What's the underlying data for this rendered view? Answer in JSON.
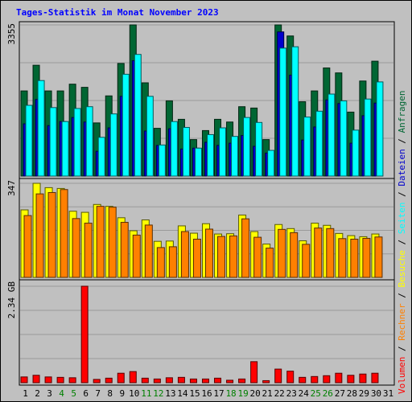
{
  "chart_data": {
    "type": "bar",
    "title": "Tages-Statistik im Monat November 2023",
    "categories": [
      "1",
      "2",
      "3",
      "4",
      "5",
      "6",
      "7",
      "8",
      "9",
      "10",
      "11",
      "12",
      "13",
      "14",
      "15",
      "16",
      "17",
      "18",
      "19",
      "20",
      "21",
      "22",
      "23",
      "24",
      "25",
      "26",
      "27",
      "28",
      "29",
      "30",
      "31"
    ],
    "weekend_days": [
      "4",
      "5",
      "11",
      "12",
      "18",
      "19",
      "25",
      "26"
    ],
    "panels": [
      {
        "id": "top",
        "ymax_label": "3355",
        "ymax": 3355,
        "series": [
          {
            "name": "Anfragen",
            "color": "#006633",
            "values": [
              1890,
              2460,
              1890,
              1890,
              2040,
              1970,
              1180,
              1780,
              2500,
              3355,
              2070,
              1060,
              1670,
              1260,
              810,
              1010,
              1260,
              1200,
              1540,
              1510,
              810,
              3355,
              3110,
              1650,
              1890,
              2400,
              2290,
              1420,
              2110,
              2550
            ]
          },
          {
            "name": "Dateien",
            "color": "#0000cc",
            "values": [
              1160,
              1700,
              1120,
              1210,
              1300,
              1200,
              550,
              1070,
              1770,
              2560,
              1000,
              680,
              1050,
              600,
              620,
              750,
              680,
              730,
              900,
              660,
              510,
              3200,
              2240,
              800,
              1090,
              1690,
              1610,
              730,
              1340,
              1620
            ]
          },
          {
            "name": "Seiten",
            "color": "#00ffff",
            "values": [
              1570,
              2120,
              1520,
              1210,
              1500,
              1540,
              860,
              1380,
              2260,
              2700,
              1770,
              690,
              1210,
              1080,
              620,
              920,
              1070,
              880,
              1300,
              1190,
              570,
              2840,
              2870,
              1310,
              1440,
              1820,
              1670,
              1020,
              1710,
              2090
            ]
          }
        ]
      },
      {
        "id": "middle",
        "ymax_label": "347",
        "ymax": 347,
        "series": [
          {
            "name": "Besuche",
            "color": "#ffff00",
            "values": [
              249,
              347,
              331,
              328,
              244,
              240,
              269,
              262,
              220,
              172,
              212,
              133,
              134,
              190,
              163,
              198,
              160,
              161,
              230,
              169,
              123,
              195,
              180,
              135,
              200,
              192,
              162,
              154,
              150,
              160
            ]
          },
          {
            "name": "Rechner",
            "color": "#ff8000",
            "values": [
              228,
              308,
              313,
              324,
              217,
              200,
              262,
              259,
              203,
              156,
              193,
              110,
              113,
              169,
              141,
              178,
              151,
              153,
              216,
              148,
              108,
              177,
              165,
              122,
              182,
              180,
              143,
              141,
              144,
              149
            ]
          }
        ]
      },
      {
        "id": "bottom",
        "ymax_label": "2.34 GB",
        "ymax": 2.34,
        "series": [
          {
            "name": "Volumen",
            "color": "#ff0000",
            "values": [
              0.14,
              0.18,
              0.14,
              0.13,
              0.12,
              2.34,
              0.08,
              0.11,
              0.23,
              0.27,
              0.11,
              0.09,
              0.12,
              0.13,
              0.09,
              0.09,
              0.11,
              0.06,
              0.09,
              0.51,
              0.05,
              0.33,
              0.28,
              0.13,
              0.15,
              0.17,
              0.23,
              0.18,
              0.21,
              0.23
            ]
          }
        ]
      }
    ],
    "side_legend": [
      {
        "text": "Anfragen",
        "color": "#006633"
      },
      {
        "text": "Dateien",
        "color": "#0000cc"
      },
      {
        "text": "Seiten",
        "color": "#00ffff"
      },
      {
        "text": "Besuche",
        "color": "#ffff00"
      },
      {
        "text": "Rechner",
        "color": "#ff8000"
      },
      {
        "text": "Volumen",
        "color": "#ff0000"
      }
    ],
    "legend_separator": " / ",
    "legend_placement": "right",
    "grid": true
  }
}
